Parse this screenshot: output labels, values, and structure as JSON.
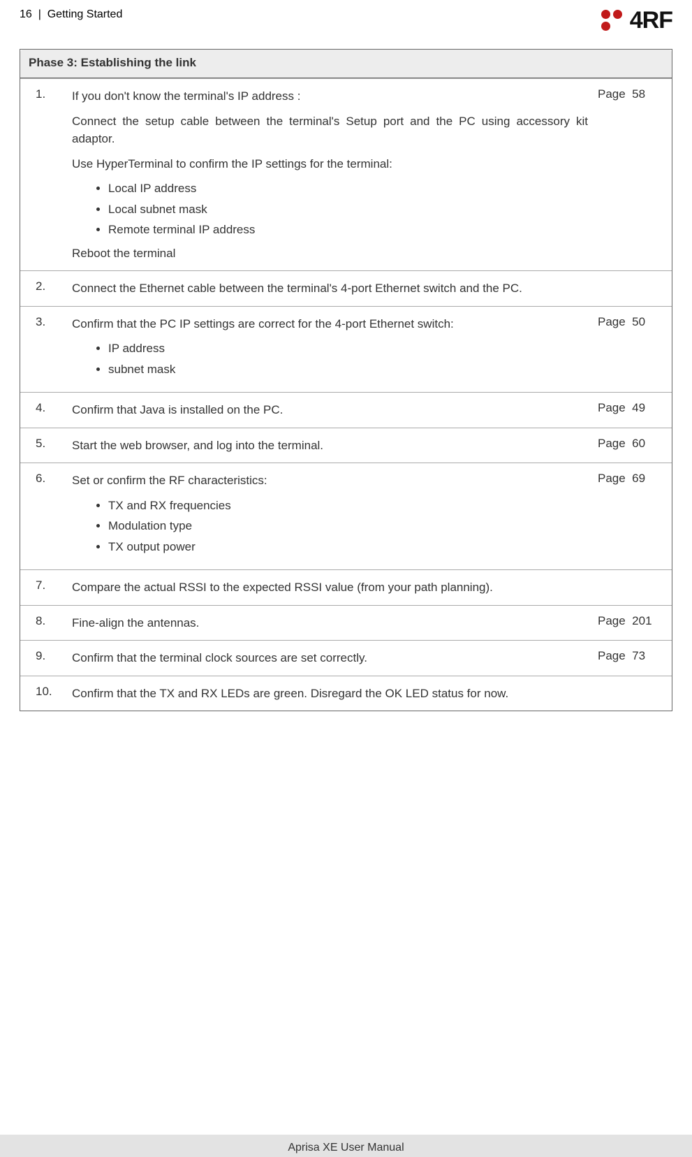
{
  "header": {
    "page_num": "16",
    "separator": "|",
    "section": "Getting Started",
    "logo_text": "4RF"
  },
  "phase": {
    "title": "Phase 3: Establishing the link",
    "rows": [
      {
        "num": "1.",
        "page_label": "Page",
        "page_num": "58",
        "intro": "If you don't know the terminal's IP address :",
        "p1": "Connect the setup cable between the terminal's Setup port and the PC using accessory kit adaptor.",
        "p2": "Use HyperTerminal to confirm the IP settings for the terminal:",
        "bullets": [
          "Local IP address",
          "Local subnet mask",
          "Remote terminal IP address"
        ],
        "p3": "Reboot the terminal"
      },
      {
        "num": "2.",
        "page_label": "",
        "page_num": "",
        "p1": "Connect the Ethernet cable between the terminal's 4-port Ethernet switch and the PC."
      },
      {
        "num": "3.",
        "page_label": "Page",
        "page_num": "50",
        "p1": "Confirm that the PC IP settings are correct for the 4-port Ethernet switch:",
        "bullets": [
          "IP address",
          "subnet mask"
        ]
      },
      {
        "num": "4.",
        "page_label": "Page",
        "page_num": "49",
        "p1": "Confirm that Java is installed on the PC."
      },
      {
        "num": "5.",
        "page_label": "Page",
        "page_num": "60",
        "p1": "Start the web browser, and log into the terminal."
      },
      {
        "num": "6.",
        "page_label": "Page",
        "page_num": "69",
        "p1": "Set or confirm the RF characteristics:",
        "bullets": [
          "TX and RX frequencies",
          "Modulation type",
          "TX output power"
        ]
      },
      {
        "num": "7.",
        "page_label": "",
        "page_num": "",
        "p1": "Compare the actual RSSI to the expected RSSI value (from your path planning)."
      },
      {
        "num": "8.",
        "page_label": "Page",
        "page_num": "201",
        "p1": "Fine-align the antennas."
      },
      {
        "num": "9.",
        "page_label": "Page",
        "page_num": "73",
        "p1": "Confirm that the terminal clock sources are set correctly."
      },
      {
        "num": "10.",
        "page_label": "",
        "page_num": "",
        "p1": "Confirm that the TX and RX LEDs are green. Disregard the OK LED status for now."
      }
    ]
  },
  "footer": {
    "text": "Aprisa XE User Manual"
  },
  "style": {
    "brand_red": "#c11a1a",
    "title_bg": "#ededed",
    "border": "#666666",
    "row_border": "#aaaaaa",
    "footer_bg": "#e3e3e3"
  }
}
